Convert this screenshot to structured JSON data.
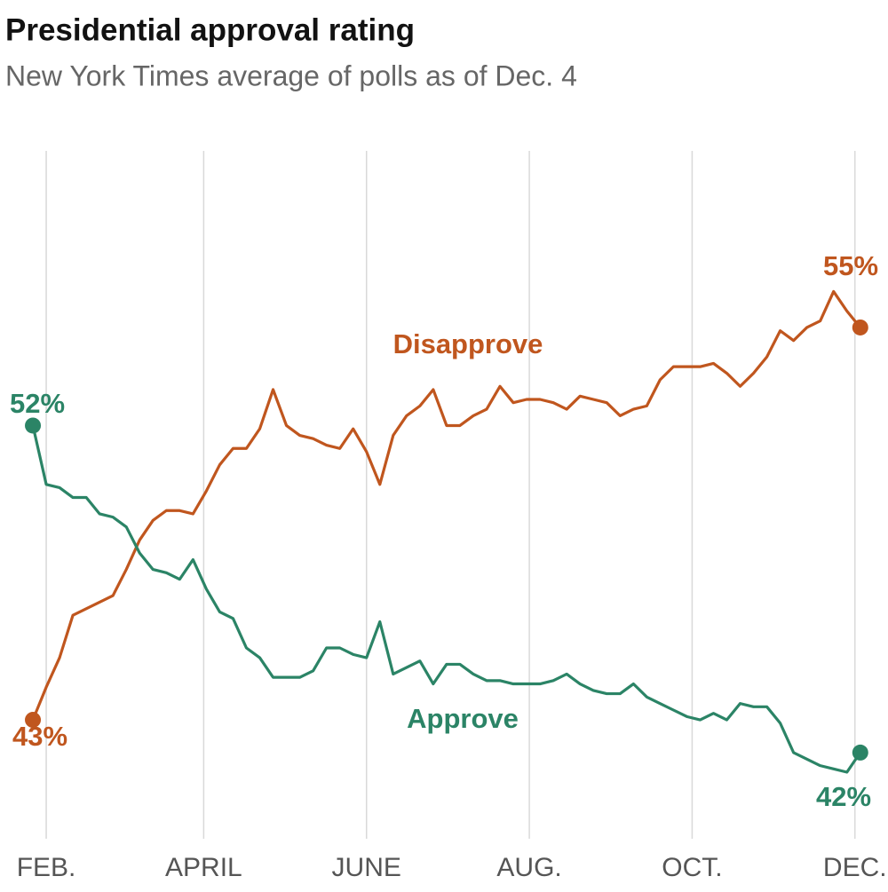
{
  "chart_data": {
    "type": "line",
    "title": "Presidential approval rating",
    "subtitle": "New York Times average of polls as of Dec. 4",
    "x": [
      27,
      32,
      37,
      42,
      47,
      52,
      57,
      62,
      67,
      72,
      77,
      82,
      87,
      92,
      97,
      102,
      107,
      112,
      117,
      122,
      127,
      132,
      137,
      142,
      147,
      152,
      157,
      162,
      167,
      172,
      177,
      182,
      187,
      192,
      197,
      202,
      207,
      212,
      217,
      222,
      227,
      232,
      237,
      242,
      247,
      252,
      257,
      262,
      267,
      272,
      277,
      282,
      287,
      292,
      297,
      302,
      307,
      312,
      317,
      322,
      327,
      332,
      337
    ],
    "xlim": [
      22,
      341.4
    ],
    "xticks": [
      {
        "value": 32,
        "label": "FEB."
      },
      {
        "value": 91,
        "label": "APRIL"
      },
      {
        "value": 152,
        "label": "JUNE"
      },
      {
        "value": 213,
        "label": "AUG."
      },
      {
        "value": 274,
        "label": "OCT."
      },
      {
        "value": 335,
        "label": "DEC."
      }
    ],
    "ylim": [
      39.5,
      60.4
    ],
    "grid": true,
    "series": [
      {
        "name": "Disapprove",
        "color": "#c0561e",
        "values": [
          43,
          44.0,
          44.9,
          46.2,
          46.4,
          46.6,
          46.8,
          47.6,
          48.5,
          49.1,
          49.4,
          49.4,
          49.3,
          50.0,
          50.8,
          51.3,
          51.3,
          51.9,
          53.1,
          52.0,
          51.7,
          51.6,
          51.4,
          51.3,
          51.9,
          51.2,
          50.2,
          51.7,
          52.3,
          52.6,
          53.1,
          52.0,
          52.0,
          52.3,
          52.5,
          53.2,
          52.7,
          52.8,
          52.8,
          52.7,
          52.5,
          52.9,
          52.8,
          52.7,
          52.3,
          52.5,
          52.6,
          53.4,
          53.8,
          53.8,
          53.8,
          53.9,
          53.6,
          53.2,
          53.6,
          54.1,
          54.9,
          54.6,
          55.0,
          55.2,
          56.1,
          55.5,
          55
        ],
        "value_labels": {
          "0": "43%",
          "62": "55%"
        }
      },
      {
        "name": "Approve",
        "color": "#2b8466",
        "values": [
          52,
          50.2,
          50.1,
          49.8,
          49.8,
          49.3,
          49.2,
          48.9,
          48.1,
          47.6,
          47.5,
          47.3,
          47.9,
          47.0,
          46.3,
          46.1,
          45.2,
          44.9,
          44.3,
          44.3,
          44.3,
          44.5,
          45.2,
          45.2,
          45.0,
          44.9,
          46.0,
          44.4,
          44.6,
          44.8,
          44.1,
          44.7,
          44.7,
          44.4,
          44.2,
          44.2,
          44.1,
          44.1,
          44.1,
          44.2,
          44.4,
          44.1,
          43.9,
          43.8,
          43.8,
          44.1,
          43.7,
          43.5,
          43.3,
          43.1,
          43.0,
          43.2,
          43.0,
          43.5,
          43.4,
          43.4,
          42.9,
          42.0,
          41.8,
          41.6,
          41.5,
          41.4,
          42
        ],
        "value_labels": {
          "0": "52%",
          "62": "42%"
        }
      }
    ]
  }
}
